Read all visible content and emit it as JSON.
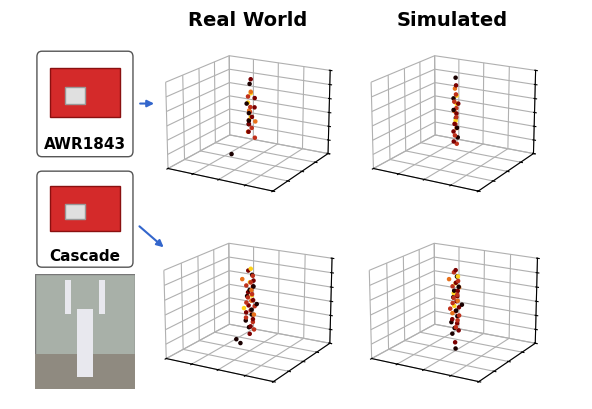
{
  "devices": [
    "AWR1843",
    "Cascade"
  ],
  "chart_data": [
    {
      "type": "scatter",
      "title": "Real World",
      "tick_labels": false,
      "grid": true,
      "xlim": [
        -1,
        1
      ],
      "ylim": [
        1,
        3
      ],
      "zlim": [
        -0.5,
        2.5
      ],
      "xticks": [
        -1,
        -0.5,
        0,
        0.5,
        1
      ],
      "yticks": [
        1,
        1.5,
        2,
        2.5,
        3
      ],
      "zticks": [
        -0.5,
        0,
        0.5,
        1,
        1.5,
        2,
        2.5
      ],
      "x": [
        0.02,
        -0.03,
        0.05,
        0.01,
        -0.02,
        0.04,
        0.0,
        -0.05,
        0.03,
        0.06,
        -0.01,
        0.02,
        -0.04,
        0.05,
        0.0,
        0.03,
        -0.02,
        0.07,
        0.01,
        -0.03,
        0.04,
        0.02,
        -0.06,
        -0.3,
        0.05
      ],
      "y": [
        2.0,
        2.05,
        1.95,
        2.02,
        1.98,
        2.1,
        1.9,
        2.03,
        1.97,
        2.06,
        2.0,
        1.94,
        2.08,
        1.99,
        2.04,
        1.92,
        2.01,
        2.07,
        1.96,
        2.02,
        2.0,
        1.93,
        2.05,
        1.9,
        2.09
      ],
      "z": [
        2.4,
        2.2,
        2.0,
        1.9,
        1.8,
        1.7,
        1.6,
        1.55,
        1.45,
        1.4,
        1.3,
        1.25,
        1.2,
        1.1,
        1.05,
        1.0,
        0.95,
        0.9,
        0.85,
        0.8,
        0.7,
        0.6,
        0.5,
        -0.3,
        0.3
      ],
      "colors": [
        "#7a0000",
        "#1a0000",
        "#e8701a",
        "#ffd21a",
        "#c0301a",
        "#7a0000",
        "#1a0000",
        "#ffd21a",
        "#c0301a",
        "#7a0000",
        "#e8701a",
        "#1a0000",
        "#c0301a",
        "#7a0000",
        "#ffd21a",
        "#1a0000",
        "#c0301a",
        "#e8701a",
        "#7a0000",
        "#1a0000",
        "#c0301a",
        "#7a0000",
        "#e8701a",
        "#1a0000",
        "#c0301a"
      ]
    },
    {
      "type": "scatter",
      "title": "Simulated",
      "tick_labels": false,
      "grid": true,
      "xlim": [
        -1,
        1
      ],
      "ylim": [
        1,
        3
      ],
      "zlim": [
        -0.5,
        2.5
      ],
      "xticks": [
        -1,
        -0.5,
        0,
        0.5,
        1
      ],
      "yticks": [
        1,
        1.5,
        2,
        2.5,
        3
      ],
      "zticks": [
        -0.5,
        0,
        0.5,
        1,
        1.5,
        2,
        2.5
      ],
      "x": [
        0.01,
        0.03,
        -0.02,
        0.04,
        0.0,
        -0.03,
        0.02,
        0.05,
        -0.01,
        0.03,
        0.0,
        -0.04,
        0.02,
        0.04,
        -0.02,
        0.01,
        0.03,
        -0.01,
        0.05,
        0.0,
        -0.03,
        0.02,
        0.04,
        -0.02,
        0.01
      ],
      "y": [
        2.0,
        1.98,
        2.03,
        1.96,
        2.05,
        2.0,
        1.94,
        2.02,
        2.07,
        1.99,
        1.95,
        2.04,
        2.01,
        1.97,
        2.06,
        2.0,
        1.93,
        2.03,
        1.98,
        2.05,
        2.0,
        1.96,
        2.02,
        1.99,
        2.04
      ],
      "z": [
        2.45,
        2.2,
        2.05,
        1.9,
        1.8,
        1.72,
        1.65,
        1.55,
        1.5,
        1.4,
        1.35,
        1.25,
        1.2,
        1.1,
        1.0,
        0.95,
        0.88,
        0.8,
        0.72,
        0.65,
        0.55,
        0.45,
        0.35,
        0.2,
        0.1
      ],
      "colors": [
        "#1a0000",
        "#7a0000",
        "#e8701a",
        "#c0301a",
        "#ffd21a",
        "#1a0000",
        "#c0301a",
        "#7a0000",
        "#ffd21a",
        "#c0301a",
        "#1a0000",
        "#e8701a",
        "#7a0000",
        "#c0301a",
        "#1a0000",
        "#ffd21a",
        "#7a0000",
        "#c0301a",
        "#1a0000",
        "#e8701a",
        "#7a0000",
        "#c0301a",
        "#1a0000",
        "#7a0000",
        "#c0301a"
      ]
    },
    {
      "type": "scatter",
      "tick_labels": false,
      "grid": true,
      "xlim": [
        -1,
        1
      ],
      "ylim": [
        1,
        3
      ],
      "zlim": [
        -0.5,
        2.5
      ],
      "xticks": [
        -1,
        -0.5,
        0,
        0.5,
        1
      ],
      "yticks": [
        1,
        1.5,
        2,
        2.5,
        3
      ],
      "zticks": [
        -0.5,
        0,
        0.5,
        1,
        1.5,
        2,
        2.5
      ],
      "x": [
        0.02,
        -0.05,
        0.08,
        0.0,
        -0.1,
        0.06,
        0.03,
        -0.03,
        0.1,
        -0.07,
        0.01,
        0.05,
        -0.02,
        0.09,
        -0.06,
        0.04,
        0.0,
        -0.09,
        0.07,
        0.02,
        -0.04,
        0.11,
        -0.01,
        0.06,
        -0.08,
        0.03,
        0.0,
        -0.05,
        0.08,
        0.01,
        -0.03,
        0.05,
        -0.07,
        0.02,
        0.04,
        -0.02,
        0.06,
        -0.2,
        0.0,
        -0.15
      ],
      "y": [
        2.0,
        2.04,
        1.96,
        2.08,
        1.93,
        2.02,
        1.98,
        2.06,
        1.95,
        2.01,
        2.09,
        1.97,
        2.03,
        1.92,
        2.05,
        2.0,
        1.94,
        2.07,
        1.99,
        2.02,
        1.96,
        2.04,
        1.98,
        2.06,
        1.95,
        2.01,
        2.03,
        1.97,
        2.0,
        2.05,
        1.93,
        2.02,
        1.99,
        2.07,
        1.96,
        2.01,
        2.04,
        1.9,
        2.0,
        1.95
      ],
      "z": [
        2.35,
        2.25,
        2.15,
        2.1,
        2.0,
        1.95,
        1.9,
        1.85,
        1.8,
        1.75,
        1.7,
        1.65,
        1.6,
        1.55,
        1.5,
        1.45,
        1.4,
        1.35,
        1.3,
        1.25,
        1.2,
        1.15,
        1.1,
        1.05,
        1.0,
        0.95,
        0.9,
        0.85,
        0.8,
        0.75,
        0.7,
        0.62,
        0.55,
        0.48,
        0.4,
        0.32,
        0.25,
        -0.1,
        0.1,
        -0.25
      ],
      "colors": [
        "#ffd21a",
        "#7a0000",
        "#c0301a",
        "#1a0000",
        "#e8701a",
        "#7a0000",
        "#c0301a",
        "#ffd21a",
        "#1a0000",
        "#c0301a",
        "#7a0000",
        "#e8701a",
        "#1a0000",
        "#c0301a",
        "#7a0000",
        "#ffd21a",
        "#c0301a",
        "#1a0000",
        "#7a0000",
        "#e8701a",
        "#c0301a",
        "#1a0000",
        "#7a0000",
        "#c0301a",
        "#ffd21a",
        "#1a0000",
        "#c0301a",
        "#7a0000",
        "#e8701a",
        "#1a0000",
        "#c0301a",
        "#7a0000",
        "#1a0000",
        "#c0301a",
        "#7a0000",
        "#1a0000",
        "#c0301a",
        "#1a0000",
        "#7a0000",
        "#1a0000"
      ]
    },
    {
      "type": "scatter",
      "tick_labels": false,
      "grid": true,
      "xlim": [
        -1,
        1
      ],
      "ylim": [
        1,
        3
      ],
      "zlim": [
        -0.5,
        2.5
      ],
      "xticks": [
        -1,
        -0.5,
        0,
        0.5,
        1
      ],
      "yticks": [
        1,
        1.5,
        2,
        2.5,
        3
      ],
      "zticks": [
        -0.5,
        0,
        0.5,
        1,
        1.5,
        2,
        2.5
      ],
      "x": [
        0.01,
        -0.04,
        0.07,
        0.0,
        -0.08,
        0.05,
        0.02,
        -0.02,
        0.09,
        -0.06,
        0.03,
        0.06,
        -0.03,
        0.08,
        -0.05,
        0.04,
        0.0,
        -0.07,
        0.06,
        0.01,
        -0.03,
        0.1,
        -0.01,
        0.05,
        -0.07,
        0.02,
        0.0,
        -0.04,
        0.07,
        0.02,
        -0.02,
        0.04,
        -0.06,
        0.01,
        0.03,
        -0.01,
        0.05,
        -0.03,
        0.0,
        0.02
      ],
      "y": [
        2.0,
        2.03,
        1.97,
        2.06,
        1.94,
        2.01,
        1.99,
        2.05,
        1.96,
        2.02,
        2.08,
        1.98,
        2.02,
        1.93,
        2.04,
        2.0,
        1.95,
        2.06,
        1.98,
        2.03,
        1.97,
        2.05,
        1.99,
        2.04,
        1.96,
        2.0,
        2.02,
        1.98,
        2.01,
        2.04,
        1.94,
        2.01,
        1.98,
        2.05,
        1.97,
        2.0,
        2.03,
        1.96,
        2.0,
        1.98
      ],
      "z": [
        2.3,
        2.2,
        2.12,
        2.05,
        2.0,
        1.94,
        1.88,
        1.82,
        1.78,
        1.72,
        1.68,
        1.62,
        1.58,
        1.52,
        1.48,
        1.42,
        1.38,
        1.32,
        1.28,
        1.22,
        1.18,
        1.12,
        1.08,
        1.02,
        0.98,
        0.92,
        0.88,
        0.82,
        0.76,
        0.7,
        0.64,
        0.58,
        0.5,
        0.44,
        0.36,
        0.3,
        0.22,
        0.12,
        -0.2,
        -0.4
      ],
      "colors": [
        "#7a0000",
        "#c0301a",
        "#ffd21a",
        "#1a0000",
        "#e8701a",
        "#c0301a",
        "#7a0000",
        "#ffd21a",
        "#1a0000",
        "#c0301a",
        "#e8701a",
        "#7a0000",
        "#1a0000",
        "#c0301a",
        "#ffd21a",
        "#7a0000",
        "#c0301a",
        "#1a0000",
        "#e8701a",
        "#7a0000",
        "#c0301a",
        "#1a0000",
        "#ffd21a",
        "#7a0000",
        "#c0301a",
        "#1a0000",
        "#7a0000",
        "#e8701a",
        "#c0301a",
        "#1a0000",
        "#7a0000",
        "#c0301a",
        "#1a0000",
        "#7a0000",
        "#c0301a",
        "#1a0000",
        "#7a0000",
        "#1a0000",
        "#7a0000",
        "#1a0000"
      ]
    }
  ]
}
